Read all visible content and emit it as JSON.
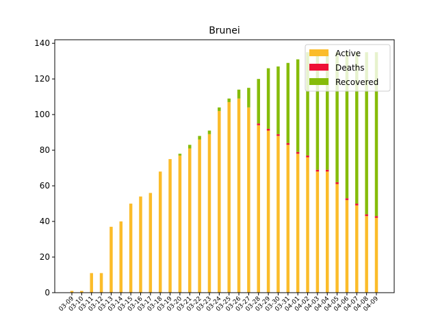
{
  "chart_data": {
    "type": "bar",
    "stacked": true,
    "title": "Brunei",
    "xlabel": "",
    "ylabel": "",
    "ylim": [
      0,
      142
    ],
    "yticks": [
      0,
      20,
      40,
      60,
      80,
      100,
      120,
      140
    ],
    "grid": false,
    "legend_position": "top-right",
    "categories": [
      "03-09",
      "03-10",
      "03-11",
      "03-12",
      "03-13",
      "03-14",
      "03-15",
      "03-16",
      "03-17",
      "03-18",
      "03-19",
      "03-20",
      "03-21",
      "03-22",
      "03-23",
      "03-24",
      "03-25",
      "03-26",
      "03-27",
      "03-28",
      "03-29",
      "03-30",
      "03-31",
      "04-01",
      "04-02",
      "04-03",
      "04-04",
      "04-05",
      "04-06",
      "04-07",
      "04-08",
      "04-09"
    ],
    "series": [
      {
        "name": "Active",
        "color": "#fbbc2a",
        "values": [
          1,
          1,
          11,
          11,
          37,
          40,
          50,
          54,
          56,
          68,
          75,
          77,
          81,
          86,
          89,
          102,
          107,
          109,
          104,
          94,
          91,
          88,
          83,
          78,
          76,
          68,
          68,
          61,
          52,
          49,
          43,
          42
        ]
      },
      {
        "name": "Deaths",
        "color": "#ee1136",
        "values": [
          0,
          0,
          0,
          0,
          0,
          0,
          0,
          0,
          0,
          0,
          0,
          0,
          0,
          0,
          0,
          0,
          0,
          0,
          0,
          1,
          1,
          1,
          1,
          1,
          1,
          1,
          1,
          1,
          1,
          1,
          1,
          1
        ]
      },
      {
        "name": "Recovered",
        "color": "#86bc0a",
        "values": [
          0,
          0,
          0,
          0,
          0,
          0,
          0,
          0,
          0,
          0,
          0,
          1,
          2,
          2,
          2,
          2,
          2,
          5,
          11,
          25,
          34,
          38,
          45,
          52,
          58,
          66,
          66,
          73,
          82,
          85,
          91,
          92
        ]
      }
    ]
  }
}
